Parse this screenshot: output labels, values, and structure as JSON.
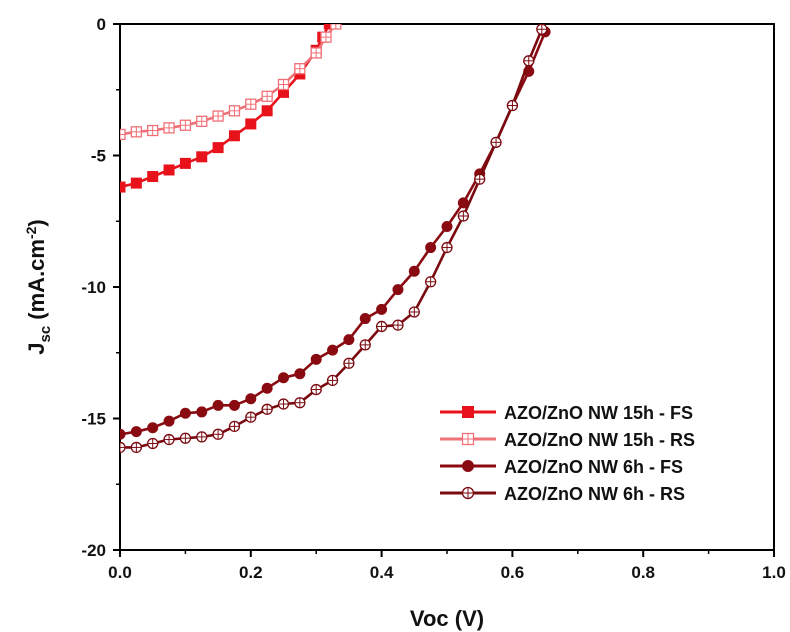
{
  "chart_data": {
    "type": "line",
    "xlabel": "Voc (V)",
    "ylabel": "J",
    "ylabel_sub": "sc",
    "ylabel_unit_prefix": " (mA.cm",
    "ylabel_unit_sup": "-2",
    "ylabel_unit_suffix": ")",
    "xlim": [
      0.0,
      1.0
    ],
    "ylim": [
      -20,
      0
    ],
    "x_ticks": [
      0.0,
      0.2,
      0.4,
      0.6,
      0.8,
      1.0
    ],
    "x_tick_labels": [
      "0.0",
      "0.2",
      "0.4",
      "0.6",
      "0.8",
      "1.0"
    ],
    "y_ticks": [
      0,
      -5,
      -10,
      -15,
      -20
    ],
    "y_tick_labels": [
      "0",
      "-5",
      "-10",
      "-15",
      "-20"
    ],
    "grid": false,
    "legend_position": "bottom-right",
    "series": [
      {
        "name": "AZO/ZnO NW 15h - FS",
        "color": "#e8121b",
        "marker": "filled-square",
        "x": [
          0.0,
          0.025,
          0.05,
          0.075,
          0.1,
          0.125,
          0.15,
          0.175,
          0.2,
          0.225,
          0.25,
          0.275,
          0.3,
          0.31,
          0.32
        ],
        "y": [
          -6.2,
          -6.05,
          -5.8,
          -5.55,
          -5.3,
          -5.05,
          -4.7,
          -4.25,
          -3.8,
          -3.3,
          -2.6,
          -1.9,
          -1.0,
          -0.5,
          0.0
        ]
      },
      {
        "name": "AZO/ZnO NW 15h - RS",
        "color": "#f07077",
        "marker": "crossed-square",
        "x": [
          0.0,
          0.025,
          0.05,
          0.075,
          0.1,
          0.125,
          0.15,
          0.175,
          0.2,
          0.225,
          0.25,
          0.275,
          0.3,
          0.315,
          0.33
        ],
        "y": [
          -4.2,
          -4.1,
          -4.05,
          -3.95,
          -3.85,
          -3.7,
          -3.5,
          -3.3,
          -3.05,
          -2.75,
          -2.3,
          -1.7,
          -1.1,
          -0.5,
          0.0
        ]
      },
      {
        "name": "AZO/ZnO NW 6h - FS",
        "color": "#8a0a12",
        "marker": "filled-circle",
        "x": [
          0.0,
          0.025,
          0.05,
          0.075,
          0.1,
          0.125,
          0.15,
          0.175,
          0.2,
          0.225,
          0.25,
          0.275,
          0.3,
          0.325,
          0.35,
          0.375,
          0.4,
          0.425,
          0.45,
          0.475,
          0.5,
          0.525,
          0.55,
          0.575,
          0.6,
          0.625,
          0.65
        ],
        "y": [
          -15.6,
          -15.5,
          -15.35,
          -15.1,
          -14.8,
          -14.75,
          -14.5,
          -14.5,
          -14.25,
          -13.85,
          -13.45,
          -13.3,
          -12.75,
          -12.4,
          -12.0,
          -11.2,
          -10.85,
          -10.1,
          -9.4,
          -8.5,
          -7.7,
          -6.8,
          -5.7,
          -4.5,
          -3.1,
          -1.8,
          -0.3
        ]
      },
      {
        "name": "AZO/ZnO NW 6h - RS",
        "color": "#7a0a10",
        "marker": "crossed-circle",
        "x": [
          0.0,
          0.025,
          0.05,
          0.075,
          0.1,
          0.125,
          0.15,
          0.175,
          0.2,
          0.225,
          0.25,
          0.275,
          0.3,
          0.325,
          0.35,
          0.375,
          0.4,
          0.425,
          0.45,
          0.475,
          0.5,
          0.525,
          0.55,
          0.575,
          0.6,
          0.625,
          0.645
        ],
        "y": [
          -16.1,
          -16.1,
          -15.95,
          -15.8,
          -15.75,
          -15.7,
          -15.6,
          -15.3,
          -14.95,
          -14.65,
          -14.45,
          -14.4,
          -13.9,
          -13.55,
          -12.9,
          -12.2,
          -11.5,
          -11.45,
          -10.95,
          -9.8,
          -8.5,
          -7.3,
          -5.9,
          -4.5,
          -3.1,
          -1.4,
          -0.2
        ]
      }
    ]
  }
}
